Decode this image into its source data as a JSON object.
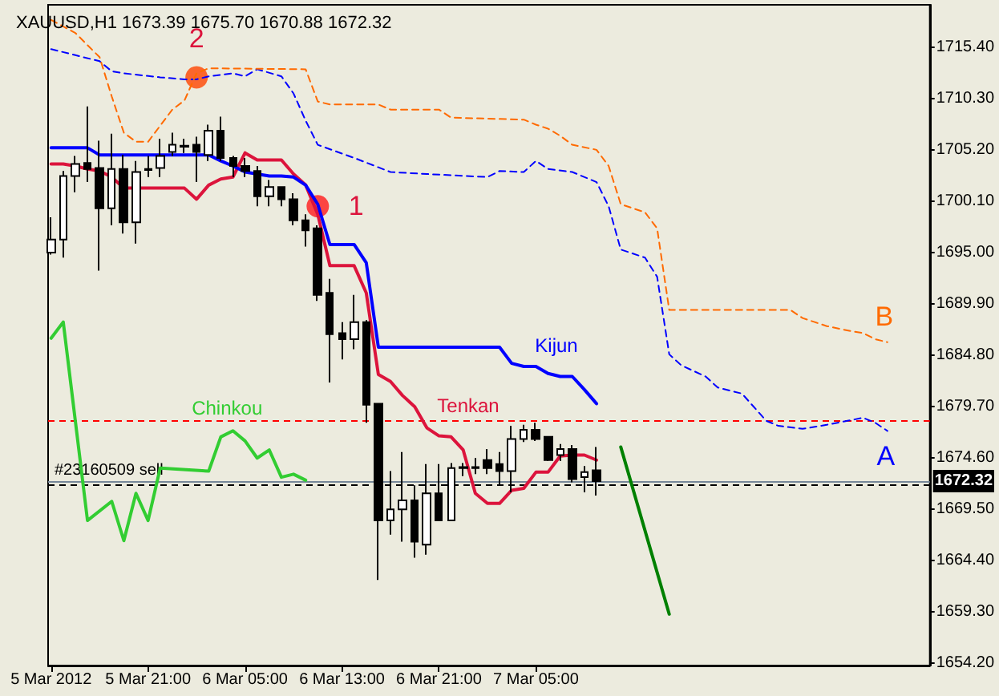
{
  "chart_data": {
    "type": "candlestick",
    "title": "XAUUSD,H1 1673.39 1675.70 1670.88 1672.32",
    "color": "#000000",
    "marker": "none",
    "legend": false,
    "grid": false,
    "x": [
      "2012-03-05T13:00",
      "2012-03-05T14:00",
      "2012-03-05T15:00",
      "2012-03-05T16:00",
      "2012-03-05T17:00",
      "2012-03-05T18:00",
      "2012-03-05T19:00",
      "2012-03-05T20:00",
      "2012-03-05T21:00",
      "2012-03-05T22:00",
      "2012-03-05T23:00",
      "2012-03-06T00:00",
      "2012-03-06T01:00",
      "2012-03-06T02:00",
      "2012-03-06T03:00",
      "2012-03-06T04:00",
      "2012-03-06T05:00",
      "2012-03-06T06:00",
      "2012-03-06T07:00",
      "2012-03-06T08:00",
      "2012-03-06T09:00",
      "2012-03-06T10:00",
      "2012-03-06T11:00",
      "2012-03-06T12:00",
      "2012-03-06T13:00",
      "2012-03-06T14:00",
      "2012-03-06T15:00",
      "2012-03-06T16:00",
      "2012-03-06T17:00",
      "2012-03-06T18:00",
      "2012-03-06T19:00",
      "2012-03-06T20:00",
      "2012-03-06T21:00",
      "2012-03-06T22:00",
      "2012-03-06T23:00",
      "2012-03-07T00:00",
      "2012-03-07T01:00",
      "2012-03-07T02:00",
      "2012-03-07T03:00",
      "2012-03-07T04:00",
      "2012-03-07T05:00",
      "2012-03-07T06:00",
      "2012-03-07T07:00",
      "2012-03-07T08:00",
      "2012-03-07T09:00",
      "2012-03-07T10:00"
    ],
    "ohlc": [
      [
        1695.0,
        1698.5,
        1694.8,
        1696.3
      ],
      [
        1696.3,
        1703.1,
        1694.5,
        1702.6
      ],
      [
        1702.6,
        1704.6,
        1701.0,
        1703.8
      ],
      [
        1703.9,
        1709.5,
        1702.0,
        1703.3
      ],
      [
        1703.4,
        1706.1,
        1693.2,
        1699.4
      ],
      [
        1699.4,
        1706.8,
        1697.7,
        1703.3
      ],
      [
        1703.3,
        1704.7,
        1696.9,
        1698.0
      ],
      [
        1698.0,
        1704.1,
        1695.9,
        1703.0
      ],
      [
        1703.3,
        1704.6,
        1702.5,
        1703.2
      ],
      [
        1703.4,
        1706.3,
        1702.5,
        1704.6
      ],
      [
        1705.0,
        1706.9,
        1704.6,
        1705.7
      ],
      [
        1705.5,
        1706.3,
        1704.9,
        1705.6
      ],
      [
        1705.7,
        1706.5,
        1702.0,
        1705.0
      ],
      [
        1704.7,
        1707.7,
        1704.1,
        1707.1
      ],
      [
        1707.1,
        1708.5,
        1704.1,
        1704.4
      ],
      [
        1704.4,
        1704.6,
        1702.5,
        1703.6
      ],
      [
        1703.6,
        1704.4,
        1702.5,
        1703.1
      ],
      [
        1703.1,
        1703.6,
        1699.6,
        1700.6
      ],
      [
        1700.6,
        1702.2,
        1699.6,
        1701.5
      ],
      [
        1701.5,
        1701.5,
        1699.6,
        1700.3
      ],
      [
        1700.3,
        1700.9,
        1697.7,
        1698.2
      ],
      [
        1698.2,
        1698.8,
        1695.6,
        1697.2
      ],
      [
        1697.4,
        1697.7,
        1690.2,
        1690.8
      ],
      [
        1691.0,
        1692.4,
        1682.1,
        1686.9
      ],
      [
        1687.0,
        1688.1,
        1684.4,
        1686.4
      ],
      [
        1686.4,
        1690.8,
        1685.4,
        1688.1
      ],
      [
        1688.1,
        1688.3,
        1678.1,
        1679.9
      ],
      [
        1680.0,
        1680.0,
        1662.5,
        1668.4
      ],
      [
        1668.4,
        1673.3,
        1667.0,
        1669.5
      ],
      [
        1669.5,
        1675.2,
        1666.3,
        1670.4
      ],
      [
        1670.4,
        1671.9,
        1664.7,
        1666.3
      ],
      [
        1666.0,
        1674.0,
        1665.0,
        1671.1
      ],
      [
        1671.1,
        1674.0,
        1668.4,
        1668.4
      ],
      [
        1668.4,
        1674.1,
        1668.4,
        1673.6
      ],
      [
        1673.6,
        1674.1,
        1672.8,
        1673.7
      ],
      [
        1673.7,
        1674.6,
        1673.0,
        1673.6
      ],
      [
        1674.4,
        1675.5,
        1673.0,
        1673.6
      ],
      [
        1674.0,
        1675.2,
        1671.9,
        1673.3
      ],
      [
        1673.3,
        1677.8,
        1671.2,
        1676.5
      ],
      [
        1676.5,
        1677.9,
        1676.2,
        1677.4
      ],
      [
        1677.4,
        1678.1,
        1676.3,
        1676.5
      ],
      [
        1676.7,
        1676.7,
        1674.3,
        1674.4
      ],
      [
        1674.9,
        1676.0,
        1674.3,
        1675.5
      ],
      [
        1675.5,
        1675.9,
        1672.2,
        1672.5
      ],
      [
        1672.7,
        1673.8,
        1671.2,
        1673.2
      ],
      [
        1673.39,
        1675.7,
        1670.88,
        1672.32
      ]
    ],
    "series": [
      {
        "name": "Tenkan",
        "type": "line",
        "color": "#dc143c",
        "values": [
          1703.8,
          1703.8,
          1703.6,
          1703.3,
          1703.1,
          1702.5,
          1701.4,
          1701.4,
          1701.4,
          1701.4,
          1701.4,
          1701.4,
          1700.3,
          1701.7,
          1702.3,
          1702.5,
          1704.9,
          1704.2,
          1704.2,
          1704.2,
          1702.8,
          1701.7,
          1698.8,
          1693.7,
          1693.7,
          1693.7,
          1691.0,
          1682.9,
          1682.2,
          1680.8,
          1679.7,
          1677.6,
          1676.8,
          1676.7,
          1675.4,
          1671.1,
          1670.1,
          1670.1,
          1671.4,
          1671.6,
          1673.2,
          1673.2,
          1674.8,
          1674.9,
          1674.9,
          1674.4
        ]
      },
      {
        "name": "Kijun",
        "type": "line",
        "color": "#0000ff",
        "values": [
          1705.4,
          1705.4,
          1705.4,
          1705.4,
          1704.7,
          1704.7,
          1704.7,
          1704.7,
          1704.7,
          1704.7,
          1704.7,
          1704.7,
          1704.7,
          1704.7,
          1704.1,
          1703.6,
          1703.0,
          1702.8,
          1702.6,
          1702.6,
          1702.5,
          1701.7,
          1699.8,
          1695.8,
          1695.8,
          1695.8,
          1694.0,
          1685.6,
          1685.6,
          1685.6,
          1685.6,
          1685.6,
          1685.6,
          1685.6,
          1685.6,
          1685.6,
          1685.6,
          1685.6,
          1684.0,
          1683.7,
          1683.7,
          1683.0,
          1682.7,
          1682.7,
          1681.4,
          1680.0
        ]
      },
      {
        "name": "Chinkou",
        "type": "line",
        "color": "#32cd32",
        "x": [
          "2012-03-05T13:00",
          "2012-03-05T14:00",
          "2012-03-05T16:00",
          "2012-03-05T18:00",
          "2012-03-05T19:00",
          "2012-03-05T20:00",
          "2012-03-05T21:00",
          "2012-03-05T22:00",
          "2012-03-06T02:00",
          "2012-03-06T03:00",
          "2012-03-06T04:00",
          "2012-03-06T05:00",
          "2012-03-06T06:00",
          "2012-03-06T07:00",
          "2012-03-06T08:00",
          "2012-03-06T09:00",
          "2012-03-06T10:00"
        ],
        "values": [
          1686.5,
          1688.1,
          1668.4,
          1670.3,
          1666.4,
          1671.1,
          1668.4,
          1673.6,
          1673.3,
          1676.7,
          1677.3,
          1676.3,
          1674.6,
          1675.4,
          1672.7,
          1673.0,
          1672.4
        ]
      },
      {
        "name": "A",
        "type": "line",
        "color": "#0000ff",
        "line_style": "dashed",
        "x": [
          "2012-03-05T13:00",
          "2012-03-05T15:00",
          "2012-03-05T17:00",
          "2012-03-05T18:00",
          "2012-03-05T19:00",
          "2012-03-05T22:00",
          "2012-03-06T00:00",
          "2012-03-06T01:00",
          "2012-03-06T02:00",
          "2012-03-06T04:00",
          "2012-03-06T05:00",
          "2012-03-06T06:00",
          "2012-03-06T08:00",
          "2012-03-06T09:00",
          "2012-03-06T10:00",
          "2012-03-06T11:00",
          "2012-03-06T14:00",
          "2012-03-06T17:00",
          "2012-03-06T20:00",
          "2012-03-07T01:00",
          "2012-03-07T02:00",
          "2012-03-07T04:00",
          "2012-03-07T05:00",
          "2012-03-07T06:00",
          "2012-03-07T08:00",
          "2012-03-07T10:00",
          "2012-03-07T11:00",
          "2012-03-07T12:00",
          "2012-03-07T14:00",
          "2012-03-07T15:00",
          "2012-03-07T16:00",
          "2012-03-07T17:00",
          "2012-03-07T19:00",
          "2012-03-07T20:00",
          "2012-03-07T22:00",
          "2012-03-08T00:00",
          "2012-03-08T01:00",
          "2012-03-08T03:00",
          "2012-03-08T05:00",
          "2012-03-08T08:00",
          "2012-03-08T09:00",
          "2012-03-08T10:00"
        ],
        "values": [
          1715.2,
          1714.6,
          1714.0,
          1713.0,
          1712.8,
          1712.4,
          1712.2,
          1712.2,
          1712.5,
          1712.8,
          1712.5,
          1713.2,
          1712.5,
          1710.8,
          1708.1,
          1705.7,
          1704.4,
          1703.0,
          1702.8,
          1702.5,
          1703.1,
          1703.0,
          1704.1,
          1703.3,
          1703.0,
          1702.0,
          1699.6,
          1695.3,
          1694.5,
          1692.6,
          1684.9,
          1683.8,
          1682.7,
          1681.6,
          1681.0,
          1678.3,
          1677.8,
          1677.5,
          1677.9,
          1678.6,
          1678.1,
          1677.3
        ]
      },
      {
        "name": "B",
        "type": "line",
        "color": "#ff6a00",
        "line_style": "dashed",
        "x": [
          "2012-03-05T13:00",
          "2012-03-05T15:00",
          "2012-03-05T17:00",
          "2012-03-05T18:00",
          "2012-03-05T19:00",
          "2012-03-05T20:00",
          "2012-03-05T21:00",
          "2012-03-05T22:00",
          "2012-03-05T23:00",
          "2012-03-06T00:00",
          "2012-03-06T01:00",
          "2012-03-06T02:00",
          "2012-03-06T10:00",
          "2012-03-06T11:00",
          "2012-03-06T12:00",
          "2012-03-06T16:00",
          "2012-03-06T17:00",
          "2012-03-06T21:00",
          "2012-03-06T22:00",
          "2012-03-07T04:00",
          "2012-03-07T05:00",
          "2012-03-07T06:00",
          "2012-03-07T07:00",
          "2012-03-07T08:00",
          "2012-03-07T10:00",
          "2012-03-07T11:00",
          "2012-03-07T12:00",
          "2012-03-07T14:00",
          "2012-03-07T15:00",
          "2012-03-07T16:00",
          "2012-03-08T02:00",
          "2012-03-08T03:00",
          "2012-03-08T05:00",
          "2012-03-08T07:00",
          "2012-03-08T08:00",
          "2012-03-08T09:00",
          "2012-03-08T10:00"
        ],
        "values": [
          1718.1,
          1716.8,
          1714.4,
          1710.5,
          1706.9,
          1706.0,
          1706.0,
          1707.6,
          1709.2,
          1710.1,
          1712.8,
          1713.3,
          1713.2,
          1710.0,
          1709.7,
          1709.7,
          1709.2,
          1709.2,
          1708.4,
          1708.2,
          1707.7,
          1707.3,
          1706.6,
          1705.7,
          1705.2,
          1703.6,
          1699.8,
          1699.0,
          1697.4,
          1689.3,
          1689.3,
          1688.5,
          1687.7,
          1687.2,
          1687.0,
          1686.4,
          1686.1
        ]
      },
      {
        "type": "line",
        "color": "#008000",
        "x": [
          "2012-03-07T12:00",
          "2012-03-07T16:00"
        ],
        "values": [
          1675.7,
          1659.1
        ]
      },
      {
        "type": "scatter",
        "marker": "circle",
        "colors": [
          "#ff1a1a",
          "#ff4500"
        ],
        "x": [
          "2012-03-06T11:00",
          "2012-03-06T01:00"
        ],
        "values": [
          1699.6,
          1712.4
        ]
      }
    ],
    "annotations": [
      {
        "text": "1",
        "x": "2012-03-06T11:00",
        "y": 1699.6
      },
      {
        "text": "2",
        "x": "2012-03-06T01:00",
        "y": 1712.4
      }
    ],
    "ref_lines": [
      {
        "axis": "y",
        "value": 1678.3,
        "color": "#ff0000",
        "line_style": "dashed"
      },
      {
        "axis": "y",
        "value": 1671.9,
        "label": "#23160509 sell",
        "color": "#000000",
        "line_style": "dashed"
      },
      {
        "axis": "y",
        "value": 1672.32,
        "label": "1672.32",
        "color": "#778899",
        "line_style": "solid"
      }
    ],
    "xlim": [
      "2012-03-05T12:45",
      "2012-03-08T13:30"
    ],
    "xticks": [
      {
        "value": "2012-03-05T13:00",
        "label": "5 Mar 2012"
      },
      {
        "value": "2012-03-05T21:00",
        "label": "5 Mar 21:00"
      },
      {
        "value": "2012-03-06T05:00",
        "label": "6 Mar 05:00"
      },
      {
        "value": "2012-03-06T13:00",
        "label": "6 Mar 13:00"
      },
      {
        "value": "2012-03-06T21:00",
        "label": "6 Mar 21:00"
      },
      {
        "value": "2012-03-07T05:00",
        "label": "7 Mar 05:00"
      }
    ],
    "ylim": [
      1654.0,
      1719.6
    ],
    "yticks": [
      {
        "value": 1654.2,
        "label": "1654.20"
      },
      {
        "value": 1659.3,
        "label": "1659.30"
      },
      {
        "value": 1664.4,
        "label": "1664.40"
      },
      {
        "value": 1669.5,
        "label": "1669.50"
      },
      {
        "value": 1674.6,
        "label": "1674.60"
      },
      {
        "value": 1679.7,
        "label": "1679.70"
      },
      {
        "value": 1684.8,
        "label": "1684.80"
      },
      {
        "value": 1689.9,
        "label": "1689.90"
      },
      {
        "value": 1695.0,
        "label": "1695.00"
      },
      {
        "value": 1700.1,
        "label": "1700.10"
      },
      {
        "value": 1705.2,
        "label": "1705.20"
      },
      {
        "value": 1710.3,
        "label": "1710.30"
      },
      {
        "value": 1715.4,
        "label": "1715.40"
      }
    ]
  }
}
